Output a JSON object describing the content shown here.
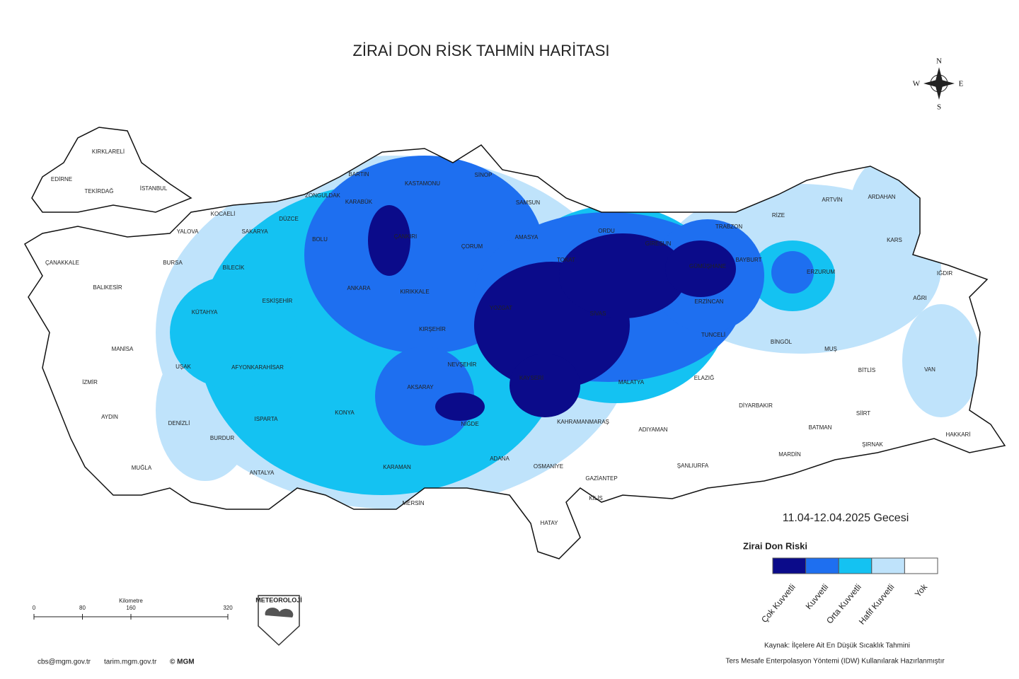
{
  "title": "ZİRAİ DON RİSK TAHMİN HARİTASI",
  "date": "11.04-12.04.2025 Gecesi",
  "legend": {
    "title": "Zirai Don Riski",
    "items": [
      {
        "label": "Çok Kuvvetli",
        "color": "#0b0b8a"
      },
      {
        "label": "Kuvvetli",
        "color": "#1e6ff0"
      },
      {
        "label": "Orta Kuvvetli",
        "color": "#14c2f2"
      },
      {
        "label": "Hafif Kuvvetli",
        "color": "#bfe3fb"
      },
      {
        "label": "Yok",
        "color": "#ffffff"
      }
    ]
  },
  "compass": {
    "n": "N",
    "e": "E",
    "s": "S",
    "w": "W"
  },
  "scale": {
    "unit": "Kilometre",
    "ticks": [
      0,
      80,
      160,
      320
    ]
  },
  "logo": "METEOROLOJİ",
  "footer": [
    "cbs@mgm.gov.tr",
    "tarim.mgm.gov.tr",
    "© MGM"
  ],
  "source": [
    "Kaynak: İlçelere Ait En Düşük Sıcaklık Tahmini",
    "Ters Mesafe Enterpolasyon Yöntemi (IDW) Kullanılarak Hazırlanmıştır"
  ],
  "provinces": [
    "KIRKLARELİ",
    "EDİRNE",
    "TEKİRDAĞ",
    "İSTANBUL",
    "KOCAELİ",
    "YALOVA",
    "SAKARYA",
    "DÜZCE",
    "ZONGULDAK",
    "BARTIN",
    "KARABÜK",
    "KASTAMONU",
    "SİNOP",
    "SAMSUN",
    "ÇANKIRI",
    "BOLU",
    "ÇORUM",
    "AMASYA",
    "TOKAT",
    "ORDU",
    "GİRESUN",
    "TRABZON",
    "RİZE",
    "ARTVİN",
    "ARDAHAN",
    "KARS",
    "IĞDIR",
    "AĞRI",
    "ERZURUM",
    "BAYBURT",
    "GÜMÜŞHANE",
    "ERZİNCAN",
    "SİVAS",
    "YOZGAT",
    "KIRIKKALE",
    "ANKARA",
    "ESKİŞEHİR",
    "BİLECİK",
    "BURSA",
    "ÇANAKKALE",
    "BALIKESİR",
    "KÜTAHYA",
    "MANİSA",
    "İZMİR",
    "UŞAK",
    "AFYONKARAHİSAR",
    "KIRŞEHİR",
    "NEVŞEHİR",
    "KAYSERİ",
    "AKSARAY",
    "KONYA",
    "NİĞDE",
    "MALATYA",
    "TUNCELİ",
    "BİNGÖL",
    "MUŞ",
    "VAN",
    "BİTLİS",
    "ELAZIĞ",
    "DİYARBAKIR",
    "SİİRT",
    "BATMAN",
    "HAKKARİ",
    "ŞIRNAK",
    "MARDİN",
    "ŞANLIURFA",
    "ADIYAMAN",
    "KAHRAMANMARAŞ",
    "GAZİANTEP",
    "KİLİS",
    "OSMANİYE",
    "HATAY",
    "ADANA",
    "MERSİN",
    "KARAMAN",
    "ANTALYA",
    "ISPARTA",
    "BURDUR",
    "DENİZLİ",
    "AYDIN",
    "MUĞLA"
  ]
}
